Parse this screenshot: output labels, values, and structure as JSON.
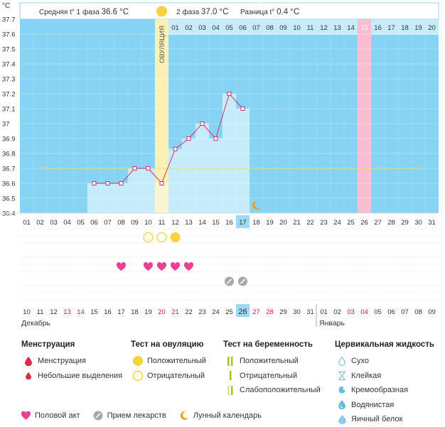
{
  "header": {
    "unit": "°C",
    "phase1_label": "Средняя t° 1 фаза",
    "phase1_value": "36.6 °C",
    "phase2_label": "2 фаза",
    "phase2_value": "37.0 °C",
    "diff_label": "Разница t°",
    "diff_value": "0.4 °C"
  },
  "ovulation_label": "ОВУЛЯЦИЯ",
  "months": {
    "left": "Декабрь",
    "right": "Январь"
  },
  "colors": {
    "sky": "#86d3f3",
    "bar": "#c6ecfc",
    "ovulation": "#fdf0b4",
    "pink": "#f8bdd0",
    "line": "#d2306e",
    "coverline": "#e8df7e",
    "heart": "#ee3f95",
    "pill": "#a8a8a8",
    "moon": "#f4a016",
    "test": "#f7d23c",
    "weekend": "#d1145a",
    "today": "#9dd8f4"
  },
  "chart_data": {
    "type": "bar",
    "ylabel": "°C",
    "ylim": [
      36.4,
      37.7
    ],
    "yticks": [
      "36.4",
      "36.5",
      "36.6",
      "36.7",
      "36.8",
      "36.9",
      "37",
      "37.1",
      "37.2",
      "37.3",
      "37.4",
      "37.5",
      "37.6",
      "37.7"
    ],
    "cycle_day_labels": [
      "01",
      "02",
      "03",
      "04",
      "05",
      "06",
      "07",
      "08",
      "09",
      "10",
      "11",
      "12",
      "13",
      "14",
      "15",
      "16",
      "17",
      "18",
      "19",
      "20",
      "21",
      "22",
      "23",
      "24",
      "25",
      "26",
      "27",
      "28",
      "29",
      "30",
      "31"
    ],
    "phase2_labels": [
      "01",
      "02",
      "03",
      "04",
      "05",
      "06",
      "07",
      "08",
      "09",
      "10",
      "11",
      "12",
      "13",
      "14",
      "15",
      "16",
      "17",
      "18",
      "19",
      "20"
    ],
    "calendar_dates": [
      "10",
      "11",
      "12",
      "13",
      "14",
      "15",
      "16",
      "17",
      "18",
      "19",
      "20",
      "21",
      "22",
      "23",
      "24",
      "25",
      "26",
      "27",
      "28",
      "29",
      "30",
      "31",
      "01",
      "02",
      "03",
      "04",
      "05",
      "06",
      "07",
      "08",
      "09"
    ],
    "weekend_dates_idx": [
      3,
      4,
      10,
      11,
      17,
      18,
      24,
      25
    ],
    "temperatures": [
      {
        "day": 6,
        "value": 36.6
      },
      {
        "day": 7,
        "value": 36.6
      },
      {
        "day": 8,
        "value": 36.6
      },
      {
        "day": 9,
        "value": 36.7
      },
      {
        "day": 10,
        "value": 36.7
      },
      {
        "day": 11,
        "value": 36.6
      },
      {
        "day": 12,
        "value": 36.83
      },
      {
        "day": 13,
        "value": 36.9
      },
      {
        "day": 14,
        "value": 37.0
      },
      {
        "day": 15,
        "value": 36.9
      },
      {
        "day": 16,
        "value": 37.2
      },
      {
        "day": 17,
        "value": 37.1
      }
    ],
    "coverline": 36.7,
    "ovulation_day": 11,
    "today_day": 17,
    "pink_day": 26,
    "ovulation_tests": [
      {
        "day": 10,
        "result": "negative"
      },
      {
        "day": 11,
        "result": "negative"
      },
      {
        "day": 12,
        "result": "positive"
      }
    ],
    "intercourse_days": [
      8,
      10,
      11,
      12,
      13
    ],
    "medication_days": [
      16,
      17
    ],
    "moon_day": 18
  },
  "legend": {
    "menstruation": {
      "title": "Менструация",
      "items": [
        {
          "label": "Менструация",
          "icon": "drop-icon"
        },
        {
          "label": "Небольшие выделения",
          "icon": "small-drop-icon"
        }
      ]
    },
    "ovulation_test": {
      "title": "Тест на овуляцию",
      "items": [
        {
          "label": "Положительный",
          "icon": "filled-circle-icon"
        },
        {
          "label": "Отрицательный",
          "icon": "outline-circle-icon"
        }
      ]
    },
    "pregnancy_test": {
      "title": "Тест на беременность",
      "items": [
        {
          "label": "Положительный",
          "icon": "double-bar-icon"
        },
        {
          "label": "Отрицательный",
          "icon": "single-bar-icon"
        },
        {
          "label": "Слабоположительный",
          "icon": "faint-double-bar-icon"
        }
      ]
    },
    "cervical_fluid": {
      "title": "Цервикальная жидкость",
      "items": [
        {
          "label": "Сухо",
          "icon": "dry-drop-icon"
        },
        {
          "label": "Клейкая",
          "icon": "sticky-icon"
        },
        {
          "label": "Кремообразная",
          "icon": "creamy-icon"
        },
        {
          "label": "Водянистая",
          "icon": "watery-icon"
        },
        {
          "label": "Яичный белок",
          "icon": "eggwhite-icon"
        }
      ]
    },
    "bottom": [
      {
        "label": "Половой акт",
        "icon": "heart-icon"
      },
      {
        "label": "Прием лекарств",
        "icon": "pill-icon"
      },
      {
        "label": "Лунный календарь",
        "icon": "moon-icon"
      }
    ]
  }
}
